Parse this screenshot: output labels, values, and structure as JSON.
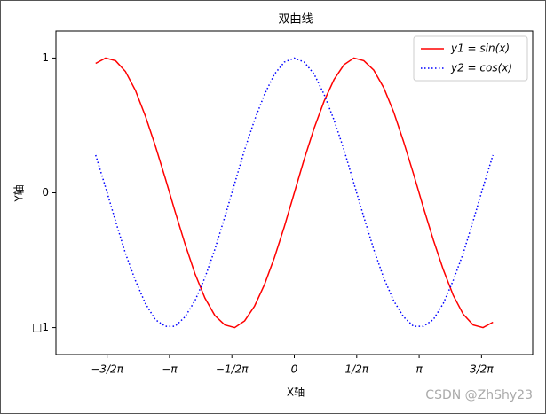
{
  "chart_data": {
    "type": "line",
    "title": "双曲线",
    "xlabel": "X轴",
    "ylabel": "Y轴",
    "x": [
      -5,
      -4.75,
      -4.5,
      -4.25,
      -4,
      -3.75,
      -3.5,
      -3.25,
      -3,
      -2.75,
      -2.5,
      -2.25,
      -2,
      -1.75,
      -1.5,
      -1.25,
      -1,
      -0.75,
      -0.5,
      -0.25,
      0,
      0.25,
      0.5,
      0.75,
      1,
      1.25,
      1.5,
      1.75,
      2,
      2.25,
      2.5,
      2.75,
      3,
      3.25,
      3.5,
      3.75,
      4,
      4.25,
      4.5,
      4.75,
      5
    ],
    "series": [
      {
        "name": "y1 = sin(x)",
        "color": "#ff0000",
        "dash": "solid",
        "values": [
          0.96,
          1.0,
          0.98,
          0.9,
          0.76,
          0.57,
          0.35,
          0.11,
          -0.14,
          -0.38,
          -0.6,
          -0.78,
          -0.91,
          -0.98,
          -1.0,
          -0.95,
          -0.84,
          -0.68,
          -0.48,
          -0.25,
          0,
          0.25,
          0.48,
          0.68,
          0.84,
          0.95,
          1.0,
          0.98,
          0.91,
          0.78,
          0.6,
          0.38,
          0.14,
          -0.11,
          -0.35,
          -0.57,
          -0.76,
          -0.9,
          -0.98,
          -1.0,
          -0.96
        ]
      },
      {
        "name": "y2 = cos(x)",
        "color": "#0000ff",
        "dash": "dotted",
        "values": [
          0.28,
          0.04,
          -0.21,
          -0.45,
          -0.65,
          -0.82,
          -0.94,
          -0.99,
          -0.99,
          -0.92,
          -0.8,
          -0.63,
          -0.42,
          -0.18,
          0.07,
          0.32,
          0.54,
          0.73,
          0.88,
          0.97,
          1,
          0.97,
          0.88,
          0.73,
          0.54,
          0.32,
          0.07,
          -0.18,
          -0.42,
          -0.63,
          -0.8,
          -0.92,
          -0.99,
          -0.99,
          -0.94,
          -0.82,
          -0.65,
          -0.45,
          -0.21,
          0.04,
          0.28
        ]
      }
    ],
    "xlim": [
      -6,
      6
    ],
    "ylim": [
      -1.2,
      1.2
    ],
    "xticks": [
      {
        "value": -4.712,
        "label": "−3/2π"
      },
      {
        "value": -3.1416,
        "label": "−π"
      },
      {
        "value": -1.5708,
        "label": "−1/2π"
      },
      0,
      {
        "value": 1.5708,
        "label": "1/2π"
      },
      {
        "value": 3.1416,
        "label": "π"
      },
      {
        "value": 4.712,
        "label": "3/2π"
      }
    ],
    "yticks": [
      {
        "value": -1,
        "label": "□1"
      },
      0,
      1
    ],
    "grid": false,
    "legend": "upper right"
  },
  "watermark": "CSDN @ZhShy23"
}
